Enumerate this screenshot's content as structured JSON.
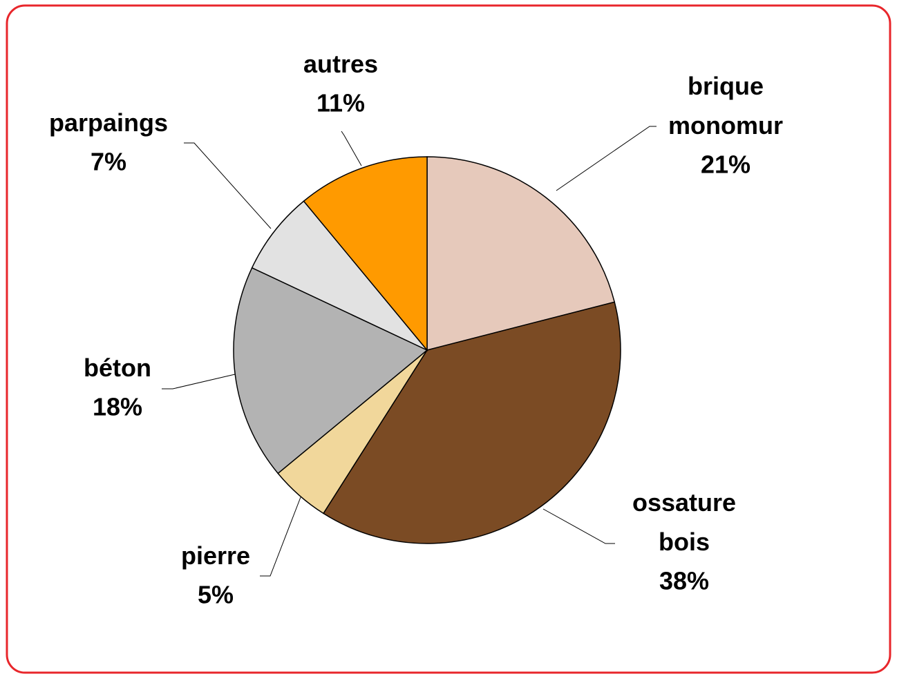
{
  "chart_data": {
    "type": "pie",
    "categories": [
      "brique monomur",
      "ossature bois",
      "pierre",
      "béton",
      "parpaings",
      "autres"
    ],
    "values": [
      21,
      38,
      5,
      18,
      7,
      11
    ],
    "value_labels": [
      "21%",
      "38%",
      "5%",
      "18%",
      "7%",
      "11%"
    ],
    "colors": [
      "#e6c9bb",
      "#7b4b24",
      "#f1d79b",
      "#b3b3b3",
      "#e2e2e2",
      "#ff9a00"
    ]
  }
}
